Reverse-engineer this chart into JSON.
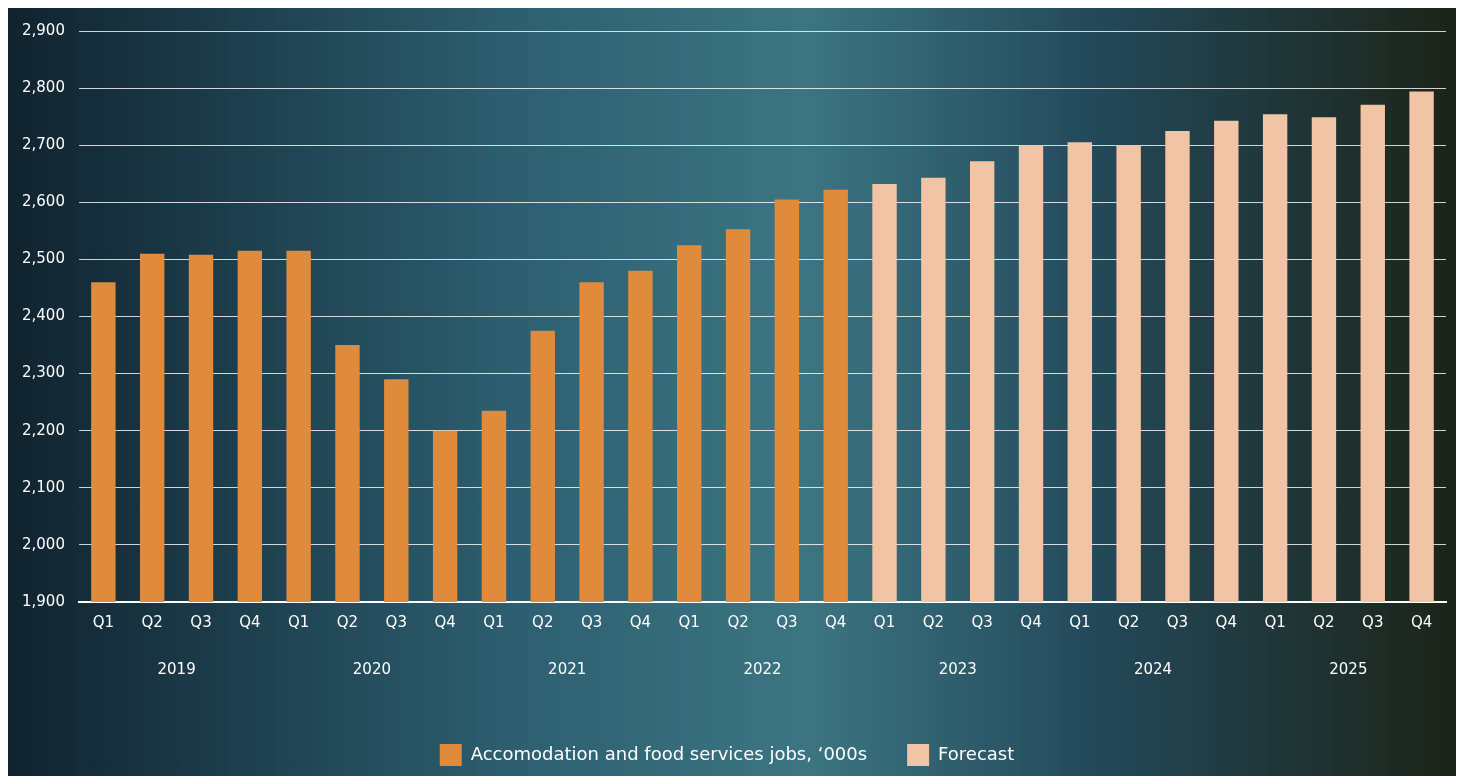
{
  "chart_data": {
    "type": "bar",
    "categories": [
      "Q1",
      "Q2",
      "Q3",
      "Q4",
      "Q1",
      "Q2",
      "Q3",
      "Q4",
      "Q1",
      "Q2",
      "Q3",
      "Q4",
      "Q1",
      "Q2",
      "Q3",
      "Q4",
      "Q1",
      "Q2",
      "Q3",
      "Q4",
      "Q1",
      "Q2",
      "Q3",
      "Q4",
      "Q1",
      "Q2",
      "Q3",
      "Q4"
    ],
    "series": [
      {
        "name": "Accomodation and food services jobs, ‘000s",
        "color": "#e08a3c",
        "values": [
          2460,
          2510,
          2508,
          2515,
          2515,
          2350,
          2290,
          2200,
          2235,
          2375,
          2460,
          2480,
          2525,
          2553,
          2605,
          2622,
          null,
          null,
          null,
          null,
          null,
          null,
          null,
          null,
          null,
          null,
          null,
          null
        ]
      },
      {
        "name": "Forecast",
        "color": "#f0c4a4",
        "values": [
          null,
          null,
          null,
          null,
          null,
          null,
          null,
          null,
          null,
          null,
          null,
          null,
          null,
          null,
          null,
          null,
          2632,
          2643,
          2672,
          2700,
          2705,
          2700,
          2725,
          2743,
          2754,
          2749,
          2771,
          2794
        ]
      }
    ],
    "annotations": [
      "2019",
      "2020",
      "2021",
      "2022",
      "2023",
      "2024",
      "2025"
    ],
    "ylim": [
      1900,
      2900
    ],
    "yticks": [
      {
        "value": 1900,
        "label": "1,900"
      },
      {
        "value": 2000,
        "label": "2,000"
      },
      {
        "value": 2100,
        "label": "2,100"
      },
      {
        "value": 2200,
        "label": "2,200"
      },
      {
        "value": 2300,
        "label": "2,300"
      },
      {
        "value": 2400,
        "label": "2,400"
      },
      {
        "value": 2500,
        "label": "2,500"
      },
      {
        "value": 2600,
        "label": "2,600"
      },
      {
        "value": 2700,
        "label": "2,700"
      },
      {
        "value": 2800,
        "label": "2,800"
      },
      {
        "value": 2900,
        "label": "2,900"
      }
    ],
    "grid": "y",
    "legend": "bottom"
  }
}
